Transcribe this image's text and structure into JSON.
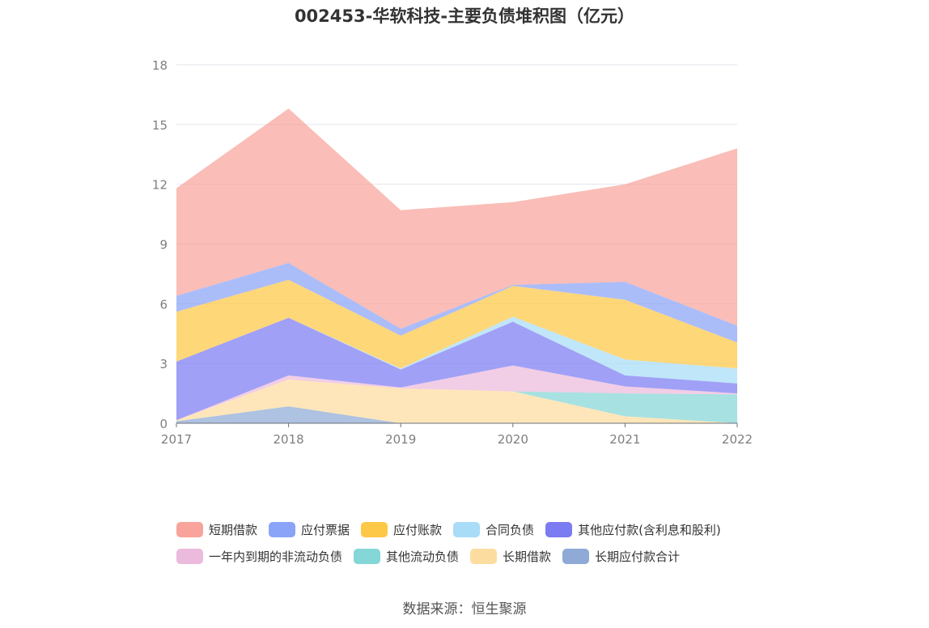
{
  "chart_data": {
    "type": "area",
    "stacked": true,
    "title": "002453-华软科技-主要负债堆积图（亿元）",
    "x": [
      "2017",
      "2018",
      "2019",
      "2020",
      "2021",
      "2022"
    ],
    "ylim": [
      0,
      18
    ],
    "yticks": [
      0,
      3,
      6,
      9,
      12,
      15,
      18
    ],
    "ytick_labels": [
      "0",
      "3",
      "6",
      "9",
      "12",
      "15",
      "18"
    ],
    "grid": true,
    "legend_position": "bottom",
    "series": [
      {
        "name": "长期应付款合计",
        "color": "#8faad6",
        "values": [
          0.1,
          0.85,
          0.0,
          0.0,
          0.0,
          0.0
        ]
      },
      {
        "name": "长期借款",
        "color": "#fddd9f",
        "values": [
          0.05,
          1.35,
          1.75,
          1.6,
          0.35,
          0.0
        ]
      },
      {
        "name": "其他流动负债",
        "color": "#85d6d6",
        "values": [
          0.0,
          0.0,
          0.0,
          0.0,
          1.15,
          1.45
        ]
      },
      {
        "name": "一年内到期的非流动负债",
        "color": "#ebbadc",
        "values": [
          0.0,
          0.2,
          0.05,
          1.3,
          0.35,
          0.05
        ]
      },
      {
        "name": "其他应付款(含利息和股利)",
        "color": "#7b7bf2",
        "values": [
          2.95,
          2.9,
          0.9,
          2.2,
          0.55,
          0.5
        ]
      },
      {
        "name": "合同负债",
        "color": "#a8dcf7",
        "values": [
          0.0,
          0.0,
          0.05,
          0.25,
          0.8,
          0.75
        ]
      },
      {
        "name": "应付账款",
        "color": "#fdc845",
        "values": [
          2.5,
          1.9,
          1.65,
          1.55,
          3.0,
          1.3
        ]
      },
      {
        "name": "应付票据",
        "color": "#8aa4f7",
        "values": [
          0.8,
          0.85,
          0.35,
          0.05,
          0.9,
          0.85
        ]
      },
      {
        "name": "短期借款",
        "color": "#f8a39b",
        "values": [
          5.4,
          7.75,
          5.95,
          4.15,
          4.9,
          8.9
        ]
      }
    ],
    "legend_rows": [
      [
        "短期借款",
        "应付票据",
        "应付账款",
        "合同负债",
        "其他应付款(含利息和股利)"
      ],
      [
        "一年内到期的非流动负债",
        "其他流动负债",
        "长期借款",
        "长期应付款合计"
      ]
    ],
    "source": "数据来源：恒生聚源"
  }
}
